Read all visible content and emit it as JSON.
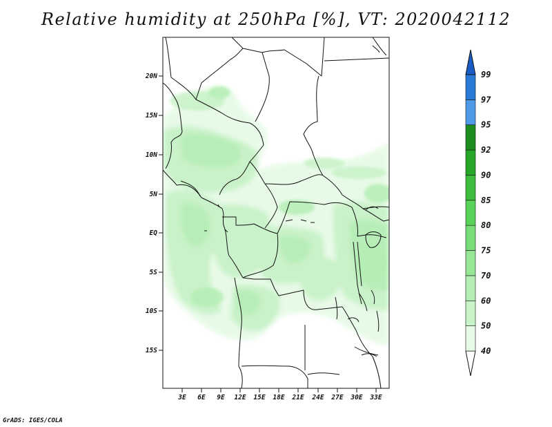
{
  "title": "Relative humidity at 250hPa [%], VT: 2020042112",
  "footer": "GrADS: IGES/COLA",
  "map": {
    "variable": "Relative humidity",
    "level": "250hPa",
    "units": "%",
    "valid_time": "2020042112",
    "lat_ticks": [
      "20N",
      "15N",
      "10N",
      "5N",
      "EQ",
      "5S",
      "10S",
      "15S"
    ],
    "lon_ticks": [
      "3E",
      "6E",
      "9E",
      "12E",
      "15E",
      "18E",
      "21E",
      "24E",
      "27E",
      "30E",
      "33E"
    ]
  },
  "colorbar": {
    "levels": [
      "40",
      "50",
      "60",
      "70",
      "75",
      "80",
      "85",
      "90",
      "92",
      "95",
      "97",
      "99"
    ],
    "colors": [
      "#ffffff",
      "#e6fae6",
      "#c8f2c8",
      "#b4eeb4",
      "#96e696",
      "#78dc78",
      "#5ad25a",
      "#3cbe3c",
      "#28a828",
      "#1e8c1e",
      "#4f9ae8",
      "#2a7ad8",
      "#1a5cc6"
    ]
  },
  "colors": {
    "map_land_fill": "#ffffff",
    "boundaries": "#111111"
  }
}
